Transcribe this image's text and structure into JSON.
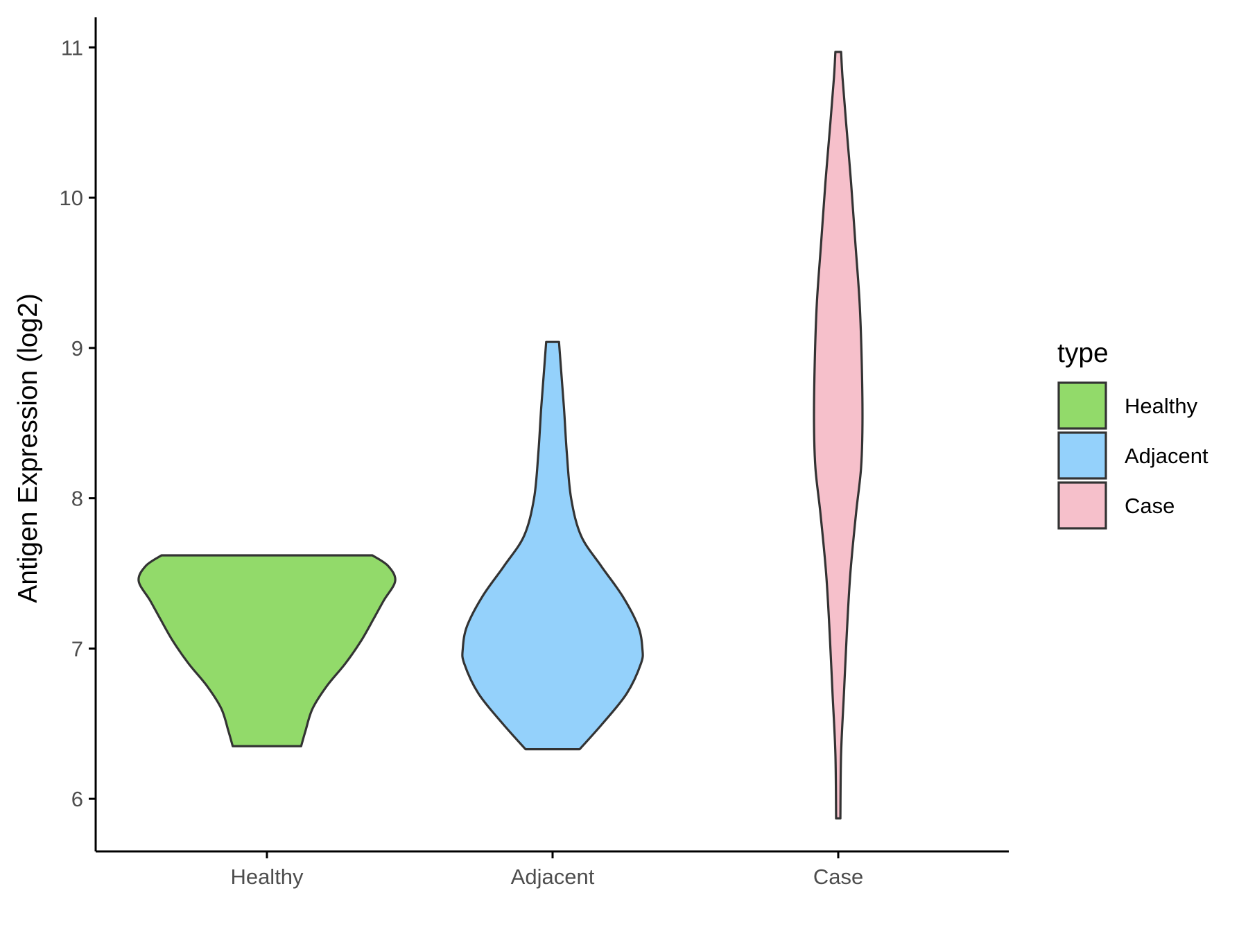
{
  "chart_data": {
    "type": "violin",
    "title": "",
    "xlabel": "",
    "ylabel": "Antigen Expression (log2)",
    "ylim": [
      5.65,
      11.2
    ],
    "yticks": [
      6,
      7,
      8,
      9,
      10,
      11
    ],
    "categories": [
      "Healthy",
      "Adjacent",
      "Case"
    ],
    "colors": {
      "Healthy": "#92da6a",
      "Adjacent": "#94d1fb",
      "Case": "#f6c0cb",
      "outline": "#333333",
      "axis": "#000000"
    },
    "series": [
      {
        "name": "Healthy",
        "min": 6.35,
        "max": 7.62,
        "density_profile": [
          {
            "y": 6.35,
            "halfwidth": 0.24
          },
          {
            "y": 6.45,
            "halfwidth": 0.27
          },
          {
            "y": 6.6,
            "halfwidth": 0.32
          },
          {
            "y": 6.75,
            "halfwidth": 0.42
          },
          {
            "y": 6.9,
            "halfwidth": 0.55
          },
          {
            "y": 7.05,
            "halfwidth": 0.66
          },
          {
            "y": 7.2,
            "halfwidth": 0.75
          },
          {
            "y": 7.32,
            "halfwidth": 0.82
          },
          {
            "y": 7.45,
            "halfwidth": 0.9
          },
          {
            "y": 7.55,
            "halfwidth": 0.85
          },
          {
            "y": 7.62,
            "halfwidth": 0.74
          }
        ]
      },
      {
        "name": "Adjacent",
        "min": 6.33,
        "max": 9.04,
        "density_profile": [
          {
            "y": 6.33,
            "halfwidth": 0.19
          },
          {
            "y": 6.5,
            "halfwidth": 0.35
          },
          {
            "y": 6.7,
            "halfwidth": 0.52
          },
          {
            "y": 6.9,
            "halfwidth": 0.62
          },
          {
            "y": 7.0,
            "halfwidth": 0.63
          },
          {
            "y": 7.15,
            "halfwidth": 0.6
          },
          {
            "y": 7.35,
            "halfwidth": 0.49
          },
          {
            "y": 7.55,
            "halfwidth": 0.34
          },
          {
            "y": 7.75,
            "halfwidth": 0.2
          },
          {
            "y": 8.0,
            "halfwidth": 0.13
          },
          {
            "y": 8.3,
            "halfwidth": 0.1
          },
          {
            "y": 8.6,
            "halfwidth": 0.08
          },
          {
            "y": 8.85,
            "halfwidth": 0.06
          },
          {
            "y": 9.04,
            "halfwidth": 0.045
          }
        ]
      },
      {
        "name": "Case",
        "min": 5.87,
        "max": 10.97,
        "density_profile": [
          {
            "y": 5.87,
            "halfwidth": 0.015
          },
          {
            "y": 6.3,
            "halfwidth": 0.02
          },
          {
            "y": 6.7,
            "halfwidth": 0.04
          },
          {
            "y": 7.1,
            "halfwidth": 0.06
          },
          {
            "y": 7.5,
            "halfwidth": 0.085
          },
          {
            "y": 7.9,
            "halfwidth": 0.125
          },
          {
            "y": 8.2,
            "halfwidth": 0.16
          },
          {
            "y": 8.5,
            "halfwidth": 0.17
          },
          {
            "y": 8.9,
            "halfwidth": 0.165
          },
          {
            "y": 9.3,
            "halfwidth": 0.15
          },
          {
            "y": 9.7,
            "halfwidth": 0.12
          },
          {
            "y": 10.1,
            "halfwidth": 0.09
          },
          {
            "y": 10.5,
            "halfwidth": 0.055
          },
          {
            "y": 10.8,
            "halfwidth": 0.03
          },
          {
            "y": 10.97,
            "halfwidth": 0.02
          }
        ]
      }
    ],
    "legend": {
      "title": "type",
      "position": "right",
      "entries": [
        "Healthy",
        "Adjacent",
        "Case"
      ]
    },
    "grid": false
  }
}
